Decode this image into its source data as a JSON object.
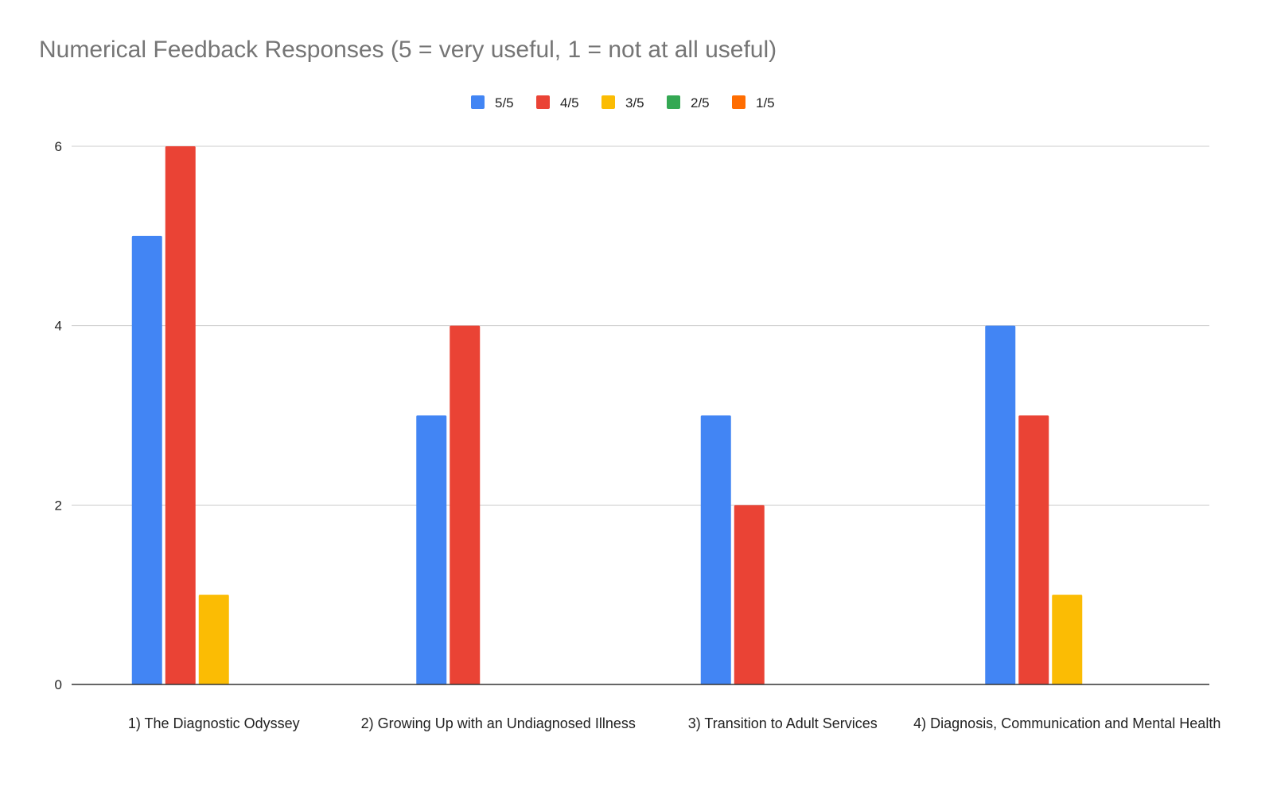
{
  "chart_data": {
    "type": "bar",
    "title": "Numerical Feedback Responses (5 = very useful, 1 = not at all useful)",
    "xlabel": "",
    "ylabel": "",
    "ylim": [
      0,
      6
    ],
    "yticks": [
      0,
      2,
      4,
      6
    ],
    "grid": true,
    "legend_position": "top-center",
    "categories": [
      "1) The Diagnostic Odyssey",
      "2) Growing Up with an Undiagnosed Illness",
      "3) Transition to Adult Services",
      "4) Diagnosis, Communication and Mental Health"
    ],
    "series": [
      {
        "name": "5/5",
        "color": "#4285f4",
        "values": [
          5,
          3,
          3,
          4
        ]
      },
      {
        "name": "4/5",
        "color": "#ea4335",
        "values": [
          6,
          4,
          2,
          3
        ]
      },
      {
        "name": "3/5",
        "color": "#fbbc04",
        "values": [
          1,
          0,
          0,
          1
        ]
      },
      {
        "name": "2/5",
        "color": "#34a853",
        "values": [
          0,
          0,
          0,
          0
        ]
      },
      {
        "name": "1/5",
        "color": "#ff6d01",
        "values": [
          0,
          0,
          0,
          0
        ]
      }
    ]
  }
}
